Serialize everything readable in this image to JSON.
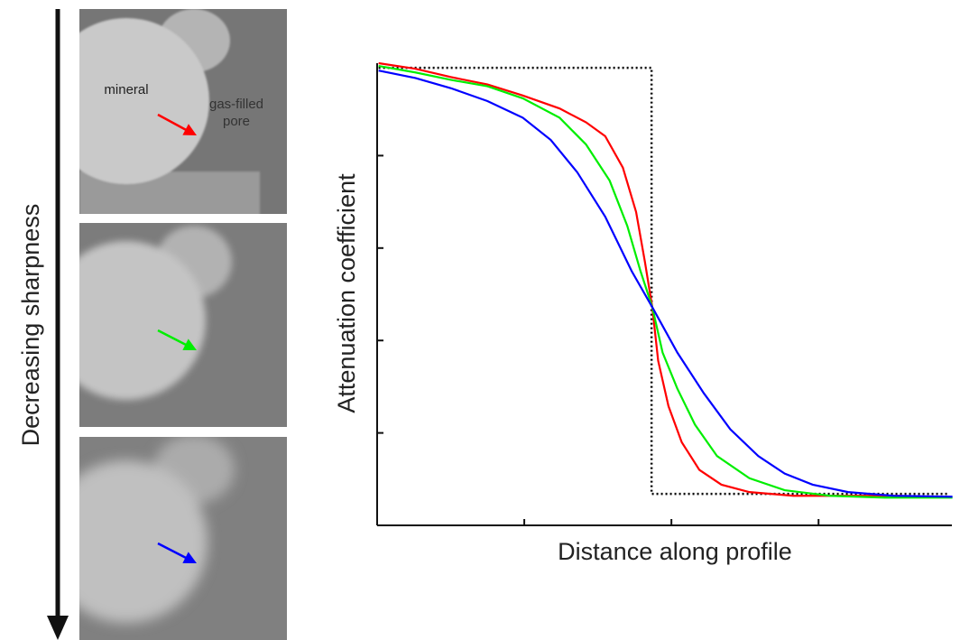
{
  "chart_data": {
    "type": "line",
    "xlabel": "Distance along profile",
    "ylabel": "Attenuation coefficient",
    "side_label": "Decreasing sharpness",
    "annotations": {
      "mineral": "mineral",
      "pore": [
        "gas-filled",
        "pore"
      ]
    },
    "xlim": [
      0,
      3.9
    ],
    "ylim": [
      0,
      5
    ],
    "xticks": [
      1,
      2,
      3
    ],
    "yticks": [
      1,
      2,
      3,
      4
    ],
    "series": [
      {
        "color": "#000000",
        "dash": "dotted",
        "x": [
          0.01,
          1.865,
          1.865,
          3.88
        ],
        "values": [
          4.95,
          4.95,
          0.34,
          0.34
        ]
      },
      {
        "color": "#ff0000",
        "dash": "solid",
        "x": [
          0.01,
          0.26,
          0.5,
          0.75,
          0.99,
          1.24,
          1.42,
          1.55,
          1.67,
          1.76,
          1.82,
          1.87,
          1.91,
          1.98,
          2.07,
          2.19,
          2.34,
          2.53,
          2.83,
          3.26,
          3.57
        ],
        "values": [
          5.0,
          4.94,
          4.85,
          4.77,
          4.65,
          4.51,
          4.36,
          4.21,
          3.87,
          3.39,
          2.85,
          2.36,
          1.78,
          1.29,
          0.9,
          0.6,
          0.44,
          0.36,
          0.32,
          0.32,
          0.32
        ]
      },
      {
        "color": "#00ee00",
        "dash": "solid",
        "x": [
          0.01,
          0.26,
          0.5,
          0.75,
          0.99,
          1.24,
          1.42,
          1.58,
          1.7,
          1.79,
          1.87,
          1.94,
          2.04,
          2.16,
          2.31,
          2.53,
          2.77,
          3.08,
          3.45,
          3.91
        ],
        "values": [
          4.97,
          4.9,
          4.82,
          4.75,
          4.62,
          4.41,
          4.12,
          3.73,
          3.24,
          2.75,
          2.36,
          1.87,
          1.48,
          1.09,
          0.75,
          0.51,
          0.38,
          0.32,
          0.3,
          0.3
        ]
      },
      {
        "color": "#0000ff",
        "dash": "solid",
        "x": [
          0.01,
          0.26,
          0.5,
          0.75,
          0.99,
          1.18,
          1.36,
          1.55,
          1.73,
          1.87,
          2.04,
          2.22,
          2.4,
          2.59,
          2.77,
          2.96,
          3.2,
          3.51,
          3.91
        ],
        "values": [
          4.92,
          4.84,
          4.73,
          4.59,
          4.41,
          4.17,
          3.82,
          3.34,
          2.75,
          2.36,
          1.87,
          1.43,
          1.04,
          0.75,
          0.56,
          0.44,
          0.36,
          0.32,
          0.31
        ]
      }
    ]
  }
}
